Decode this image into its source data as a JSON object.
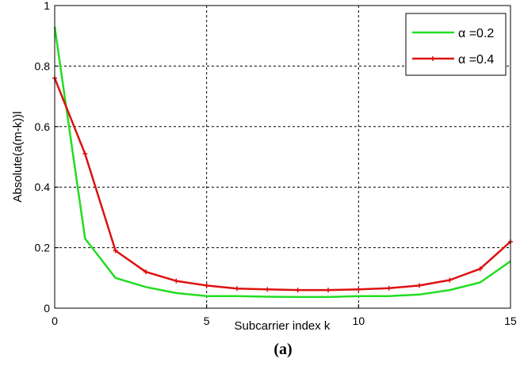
{
  "chart_data": {
    "type": "line",
    "xlabel": "Subcarrier index k",
    "ylabel": "Absolute(a(m-k))l",
    "caption": "(a)",
    "xlim": [
      0,
      15
    ],
    "ylim": [
      0,
      1
    ],
    "xticks": [
      "0",
      "5",
      "10",
      "15"
    ],
    "yticks": [
      "0",
      "0.2",
      "0.4",
      "0.6",
      "0.8",
      "1"
    ],
    "grid": true,
    "legend_position": "top-right",
    "x": [
      0,
      1,
      2,
      3,
      4,
      5,
      6,
      7,
      8,
      9,
      10,
      11,
      12,
      13,
      14,
      15
    ],
    "series": [
      {
        "name": "α =0.2",
        "color": "#22dd22",
        "marker": "none",
        "values": [
          0.93,
          0.23,
          0.1,
          0.07,
          0.05,
          0.04,
          0.04,
          0.038,
          0.037,
          0.037,
          0.04,
          0.04,
          0.045,
          0.06,
          0.085,
          0.155
        ]
      },
      {
        "name": "α =0.4",
        "color": "#dd1111",
        "marker": "plus",
        "values": [
          0.76,
          0.51,
          0.19,
          0.12,
          0.09,
          0.075,
          0.065,
          0.062,
          0.06,
          0.06,
          0.062,
          0.066,
          0.075,
          0.093,
          0.13,
          0.22
        ]
      }
    ]
  }
}
